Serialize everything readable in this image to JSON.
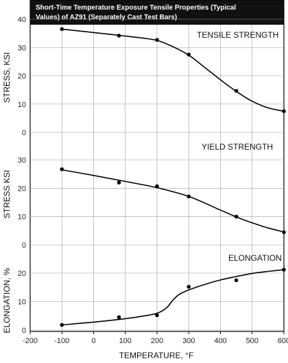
{
  "chart_data": {
    "type": "line",
    "title_lines": [
      "Short-Time Temperature Exposure Tensile Properties (Typical",
      "Values) of AZ91 (Separately Cast Test Bars)"
    ],
    "xlabel": "TEMPERATURE, °F",
    "xlim": [
      -200,
      600
    ],
    "xticks": [
      -200,
      -100,
      0,
      100,
      200,
      300,
      400,
      500,
      600
    ],
    "panels": [
      {
        "label": "TENSILE STRENGTH",
        "ylabel": "STRESS, KSI",
        "ylim": [
          0,
          40
        ],
        "yticks": [
          0,
          10,
          20,
          30,
          40
        ],
        "points": [
          [
            -100,
            36.5
          ],
          [
            80,
            34.2
          ],
          [
            200,
            32.7
          ],
          [
            300,
            27.5
          ],
          [
            450,
            14.7
          ],
          [
            600,
            7.5
          ]
        ],
        "curve": [
          [
            -100,
            36.5
          ],
          [
            0,
            35.3
          ],
          [
            80,
            34.3
          ],
          [
            150,
            33.4
          ],
          [
            200,
            32.5
          ],
          [
            250,
            30.3
          ],
          [
            300,
            27.3
          ],
          [
            350,
            23.0
          ],
          [
            400,
            18.6
          ],
          [
            450,
            14.5
          ],
          [
            500,
            11.0
          ],
          [
            550,
            8.7
          ],
          [
            600,
            7.5
          ]
        ]
      },
      {
        "label": "YIELD STRENGTH",
        "ylabel": "STRESS KSI",
        "ylim": [
          0,
          30
        ],
        "yticks": [
          0,
          10,
          20,
          30
        ],
        "points": [
          [
            -100,
            26.7
          ],
          [
            80,
            22.0
          ],
          [
            200,
            20.7
          ],
          [
            300,
            17.1
          ],
          [
            450,
            10.0
          ],
          [
            600,
            4.5
          ]
        ],
        "curve": [
          [
            -100,
            26.5
          ],
          [
            0,
            24.5
          ],
          [
            100,
            22.4
          ],
          [
            200,
            20.2
          ],
          [
            300,
            17.1
          ],
          [
            400,
            12.3
          ],
          [
            450,
            9.9
          ],
          [
            500,
            7.8
          ],
          [
            550,
            6.0
          ],
          [
            600,
            4.6
          ]
        ]
      },
      {
        "label": "ELONGATION",
        "ylabel": "ELONGATION, %",
        "ylim": [
          0,
          20
        ],
        "yticks": [
          0,
          10,
          20
        ],
        "points": [
          [
            -100,
            1.8
          ],
          [
            80,
            4.5
          ],
          [
            200,
            5.2
          ],
          [
            300,
            15.2
          ],
          [
            450,
            17.5
          ],
          [
            600,
            21.2
          ]
        ],
        "curve": [
          [
            -100,
            1.8
          ],
          [
            0,
            2.8
          ],
          [
            100,
            4.0
          ],
          [
            150,
            4.8
          ],
          [
            200,
            5.9
          ],
          [
            230,
            7.8
          ],
          [
            250,
            10.5
          ],
          [
            270,
            12.5
          ],
          [
            300,
            14.1
          ],
          [
            350,
            16.0
          ],
          [
            400,
            17.6
          ],
          [
            450,
            18.8
          ],
          [
            500,
            19.9
          ],
          [
            550,
            20.6
          ],
          [
            600,
            21.2
          ]
        ]
      }
    ]
  }
}
